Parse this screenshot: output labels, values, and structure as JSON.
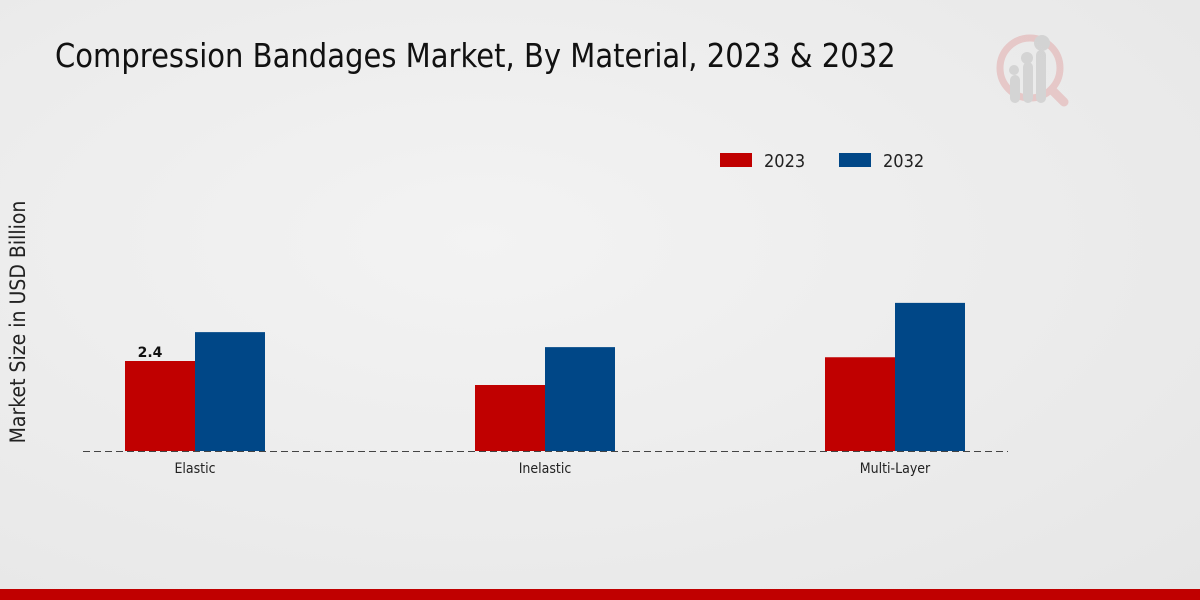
{
  "chart_data": {
    "type": "bar",
    "title": "Compression Bandages Market, By Material, 2023 & 2032",
    "xlabel": "",
    "ylabel": "Market Size in USD Billion",
    "categories": [
      "Elastic",
      "Inelastic",
      "Multi-Layer"
    ],
    "series": [
      {
        "name": "2023",
        "color": "#c00000",
        "values": [
          2.4,
          1.76,
          2.5
        ]
      },
      {
        "name": "2032",
        "color": "#004787",
        "values": [
          3.17,
          2.77,
          3.95
        ]
      }
    ],
    "data_labels": [
      {
        "series": "2023",
        "category": "Elastic",
        "text": "2.4"
      }
    ],
    "ylim": [
      0,
      8
    ],
    "grid": false,
    "legend_position": "top-right"
  }
}
